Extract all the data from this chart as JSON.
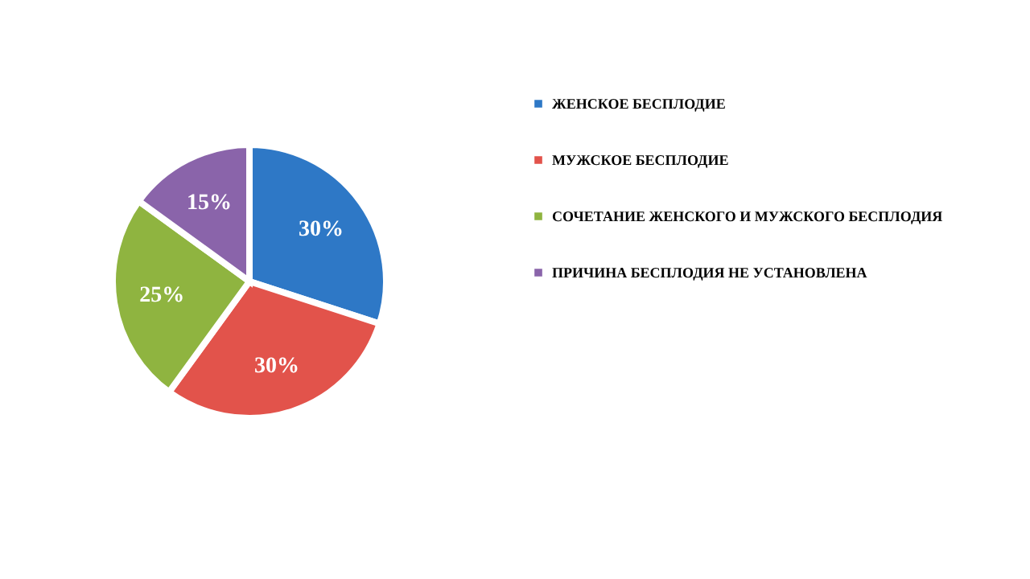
{
  "chart_data": {
    "type": "pie",
    "categories": [
      "ЖЕНСКОЕ  БЕСПЛОДИЕ",
      "МУЖСКОЕ  БЕСПЛОДИЕ",
      "СОЧЕТАНИЕ  ЖЕНСКОГО  И МУЖСКОГО  БЕСПЛОДИЯ",
      "ПРИЧИНА  БЕСПЛОДИЯ  НЕ  УСТАНОВЛЕНА"
    ],
    "values": [
      30,
      30,
      25,
      15
    ],
    "colors": [
      "#2e78c6",
      "#e2534b",
      "#8fb440",
      "#8a64aa"
    ],
    "value_labels": [
      "30%",
      "30%",
      "25%",
      "15%"
    ],
    "legend": "right"
  }
}
